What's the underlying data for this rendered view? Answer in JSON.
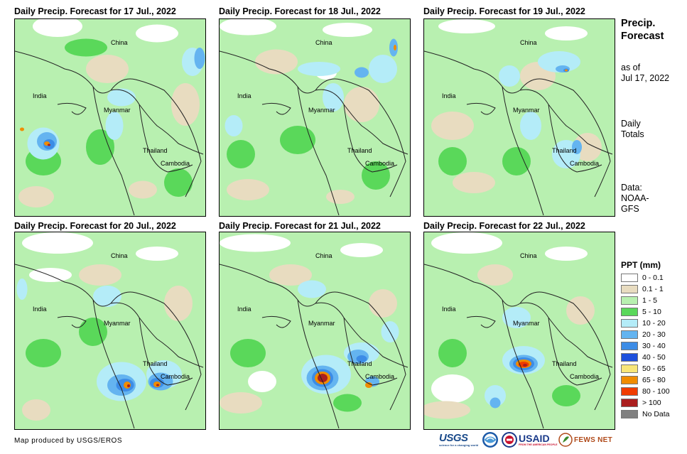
{
  "panels": [
    {
      "title": "Daily Precip. Forecast for 17 Jul., 2022"
    },
    {
      "title": "Daily Precip. Forecast for 18 Jul., 2022"
    },
    {
      "title": "Daily Precip. Forecast for 19 Jul., 2022"
    },
    {
      "title": "Daily Precip. Forecast for 20 Jul., 2022"
    },
    {
      "title": "Daily Precip. Forecast for 21 Jul., 2022"
    },
    {
      "title": "Daily Precip. Forecast for 22 Jul., 2022"
    }
  ],
  "places": {
    "china": "China",
    "india": "India",
    "myanmar": "Myanmar",
    "thailand": "Thailand",
    "cambodia": "Cambodia"
  },
  "sidebar": {
    "title_line1": "Precip.",
    "title_line2": "Forecast",
    "asof_line1": "as of",
    "asof_line2": "Jul 17, 2022",
    "daily_line1": "Daily",
    "daily_line2": "Totals",
    "data_line1": "Data:",
    "data_line2": "NOAA-",
    "data_line3": "GFS"
  },
  "legend": {
    "title": "PPT (mm)",
    "items": [
      {
        "label": "0 - 0.1",
        "color": "#ffffff"
      },
      {
        "label": "0.1 - 1",
        "color": "#e8dcc0"
      },
      {
        "label": "1 - 5",
        "color": "#b8f0b0"
      },
      {
        "label": "5 - 10",
        "color": "#5ad85a"
      },
      {
        "label": "10 - 20",
        "color": "#b4ecf8"
      },
      {
        "label": "20 - 30",
        "color": "#64b4f0"
      },
      {
        "label": "30 - 40",
        "color": "#3c8ce6"
      },
      {
        "label": "40 - 50",
        "color": "#1e50dc"
      },
      {
        "label": "50 - 65",
        "color": "#f8e678"
      },
      {
        "label": "65 - 80",
        "color": "#f08c00"
      },
      {
        "label": "80 - 100",
        "color": "#f03c00"
      },
      {
        "label": "> 100",
        "color": "#aa1e1e"
      },
      {
        "label": "No Data",
        "color": "#808080"
      }
    ]
  },
  "credit": "Map produced by USGS/EROS",
  "logos": {
    "usgs": "USGS",
    "usgs_tag": "science for a changing world",
    "usaid": "USAID",
    "usaid_tag": "FROM THE AMERICAN PEOPLE",
    "fewsnet": "FEWS NET"
  }
}
